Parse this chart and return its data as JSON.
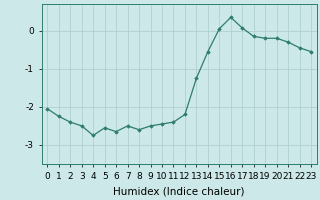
{
  "x": [
    0,
    1,
    2,
    3,
    4,
    5,
    6,
    7,
    8,
    9,
    10,
    11,
    12,
    13,
    14,
    15,
    16,
    17,
    18,
    19,
    20,
    21,
    22,
    23
  ],
  "y": [
    -2.05,
    -2.25,
    -2.4,
    -2.5,
    -2.75,
    -2.55,
    -2.65,
    -2.5,
    -2.6,
    -2.5,
    -2.45,
    -2.4,
    -2.2,
    -1.25,
    -0.55,
    0.05,
    0.35,
    0.07,
    -0.15,
    -0.2,
    -0.2,
    -0.3,
    -0.45,
    -0.55
  ],
  "line_color": "#2e7d6e",
  "bg_color": "#cce8e8",
  "grid_color": "#b0d0d0",
  "xlabel": "Humidex (Indice chaleur)",
  "ylim": [
    -3.5,
    0.7
  ],
  "xlim": [
    -0.5,
    23.5
  ],
  "yticks": [
    -3,
    -2,
    -1,
    0
  ],
  "xticks": [
    0,
    1,
    2,
    3,
    4,
    5,
    6,
    7,
    8,
    9,
    10,
    11,
    12,
    13,
    14,
    15,
    16,
    17,
    18,
    19,
    20,
    21,
    22,
    23
  ],
  "tick_fontsize": 6.5,
  "xlabel_fontsize": 7.5,
  "marker": "D",
  "markersize": 1.8,
  "linewidth": 0.9
}
